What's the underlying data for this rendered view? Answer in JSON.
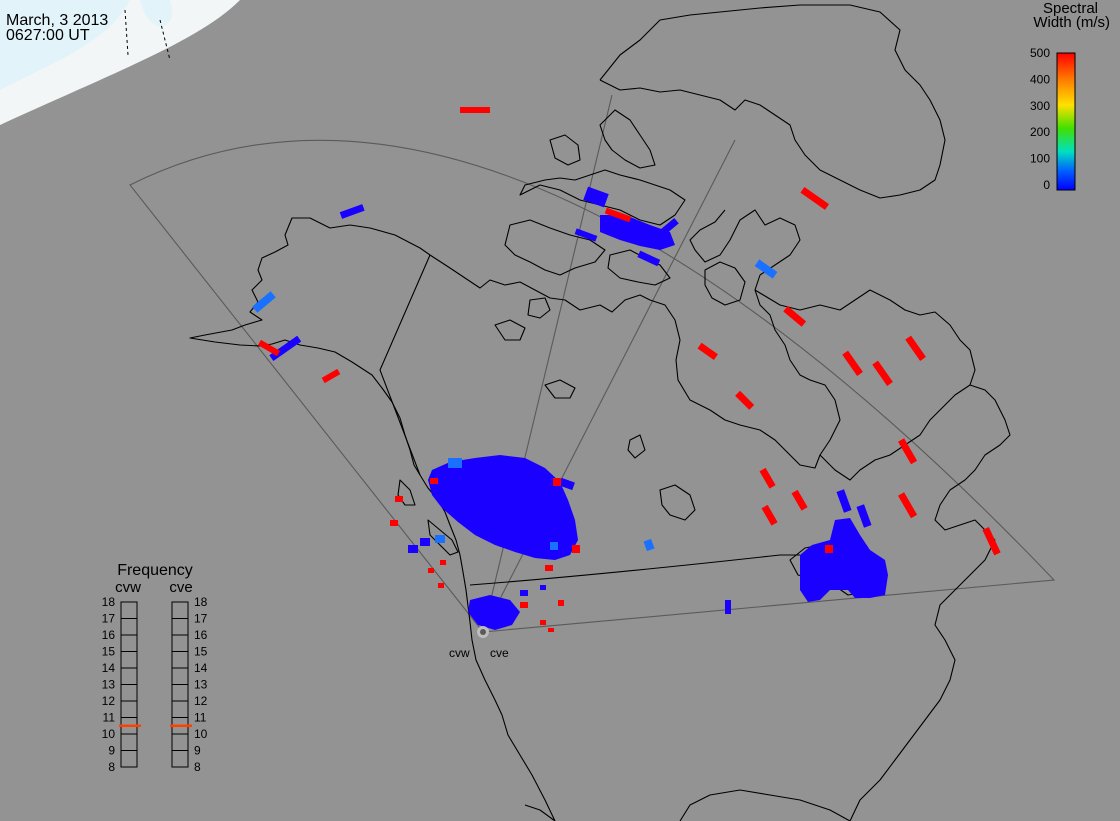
{
  "header": {
    "date": "March, 3 2013",
    "time": "0627:00 UT"
  },
  "colorbar": {
    "title_line1": "Spectral",
    "title_line2": "Width (m/s)",
    "ticks": [
      "500",
      "400",
      "300",
      "200",
      "100",
      "0"
    ],
    "min": 0,
    "max": 500,
    "colors": [
      "#ff0000",
      "#ff8000",
      "#ffe000",
      "#40e000",
      "#00e0c0",
      "#0060ff",
      "#0000ff"
    ]
  },
  "frequency_panel": {
    "title": "Frequency",
    "radar_left": "cvw",
    "radar_right": "cve",
    "ticks": [
      "18",
      "17",
      "16",
      "15",
      "14",
      "13",
      "12",
      "11",
      "10",
      "9",
      "8"
    ],
    "left_marker_mhz": 10.5,
    "right_marker_mhz": 10.5,
    "marker_color": "#ff4000"
  },
  "radars": {
    "west_label": "cvw",
    "east_label": "cve"
  },
  "colors": {
    "background": "#939393",
    "daylight": "#f2f6f6",
    "daylight_edge": "#e3f3fa",
    "fov": "#5a5a5a",
    "echo_red": "#ff0000",
    "echo_blue": "#1a00ff",
    "echo_light_blue": "#1a70ff"
  }
}
